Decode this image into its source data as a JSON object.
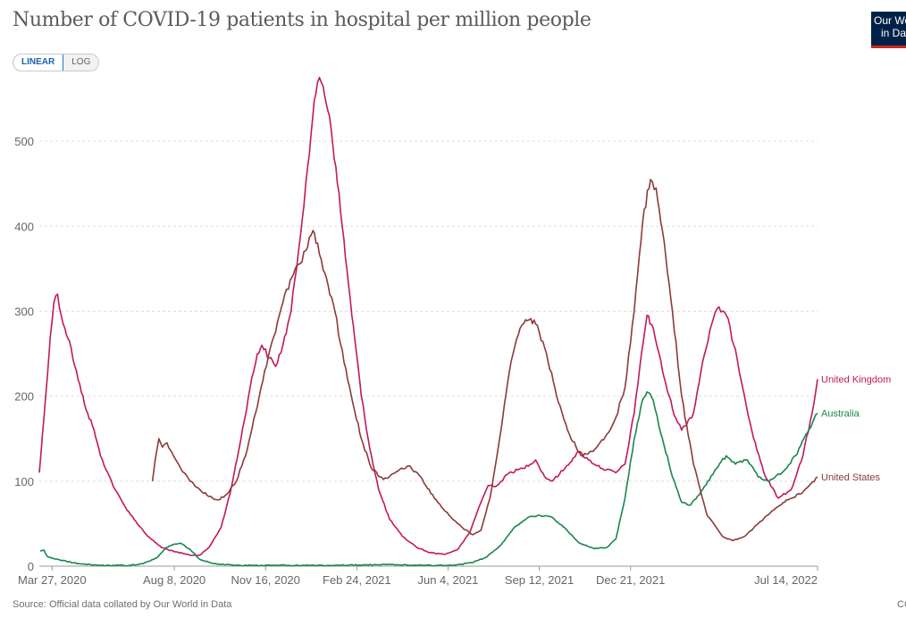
{
  "title": "Number of COVID-19 patients in hospital per million people",
  "scale_toggle": {
    "linear_label": "LINEAR",
    "log_label": "LOG",
    "active": "LINEAR"
  },
  "logo": {
    "line1": "Our World",
    "line2": "in Data",
    "bg_color": "#002147",
    "accent_color": "#ce261e"
  },
  "source": "Source: Official data collated by Our World in Data",
  "license_fragment": "CC",
  "chart_data": {
    "type": "line",
    "title": "Number of COVID-19 patients in hospital per million people",
    "xlabel": "",
    "ylabel": "",
    "x_range": [
      "2020-03-13",
      "2022-07-14"
    ],
    "ylim": [
      0,
      580
    ],
    "y_ticks": [
      0,
      100,
      200,
      300,
      400,
      500
    ],
    "x_ticks": [
      "Mar 27, 2020",
      "Aug 8, 2020",
      "Nov 16, 2020",
      "Feb 24, 2021",
      "Jun 4, 2021",
      "Sep 12, 2021",
      "Dec 21, 2021",
      "Jul 14, 2022"
    ],
    "x_tick_dates": [
      "2020-03-27",
      "2020-08-08",
      "2020-11-16",
      "2021-02-24",
      "2021-06-04",
      "2021-09-12",
      "2021-12-21",
      "2022-07-14"
    ],
    "grid": true,
    "legend": "inline labels at line ends",
    "series": [
      {
        "name": "United Kingdom",
        "color": "#c2185b",
        "points": [
          [
            "2020-03-13",
            110
          ],
          [
            "2020-03-20",
            200
          ],
          [
            "2020-03-25",
            270
          ],
          [
            "2020-03-29",
            310
          ],
          [
            "2020-04-02",
            320
          ],
          [
            "2020-04-06",
            295
          ],
          [
            "2020-04-10",
            280
          ],
          [
            "2020-04-15",
            265
          ],
          [
            "2020-04-21",
            235
          ],
          [
            "2020-04-28",
            205
          ],
          [
            "2020-05-05",
            180
          ],
          [
            "2020-05-12",
            160
          ],
          [
            "2020-05-19",
            130
          ],
          [
            "2020-05-27",
            110
          ],
          [
            "2020-06-04",
            90
          ],
          [
            "2020-06-15",
            70
          ],
          [
            "2020-06-25",
            55
          ],
          [
            "2020-07-10",
            35
          ],
          [
            "2020-07-25",
            22
          ],
          [
            "2020-08-08",
            17
          ],
          [
            "2020-08-25",
            13
          ],
          [
            "2020-09-05",
            13
          ],
          [
            "2020-09-15",
            22
          ],
          [
            "2020-09-28",
            45
          ],
          [
            "2020-10-08",
            85
          ],
          [
            "2020-10-20",
            150
          ],
          [
            "2020-10-30",
            210
          ],
          [
            "2020-11-07",
            250
          ],
          [
            "2020-11-12",
            260
          ],
          [
            "2020-11-20",
            245
          ],
          [
            "2020-11-27",
            235
          ],
          [
            "2020-12-05",
            260
          ],
          [
            "2020-12-14",
            300
          ],
          [
            "2020-12-22",
            370
          ],
          [
            "2020-12-30",
            450
          ],
          [
            "2021-01-05",
            510
          ],
          [
            "2021-01-10",
            555
          ],
          [
            "2021-01-14",
            575
          ],
          [
            "2021-01-18",
            565
          ],
          [
            "2021-01-25",
            530
          ],
          [
            "2021-02-01",
            470
          ],
          [
            "2021-02-08",
            400
          ],
          [
            "2021-02-15",
            330
          ],
          [
            "2021-02-22",
            265
          ],
          [
            "2021-03-01",
            200
          ],
          [
            "2021-03-10",
            140
          ],
          [
            "2021-03-20",
            90
          ],
          [
            "2021-04-01",
            55
          ],
          [
            "2021-04-15",
            35
          ],
          [
            "2021-05-01",
            22
          ],
          [
            "2021-05-15",
            16
          ],
          [
            "2021-06-01",
            14
          ],
          [
            "2021-06-15",
            20
          ],
          [
            "2021-06-28",
            40
          ],
          [
            "2021-07-08",
            70
          ],
          [
            "2021-07-18",
            95
          ],
          [
            "2021-07-28",
            95
          ],
          [
            "2021-08-10",
            110
          ],
          [
            "2021-08-25",
            115
          ],
          [
            "2021-09-08",
            125
          ],
          [
            "2021-09-18",
            105
          ],
          [
            "2021-09-26",
            100
          ],
          [
            "2021-10-10",
            115
          ],
          [
            "2021-10-25",
            135
          ],
          [
            "2021-11-05",
            125
          ],
          [
            "2021-11-20",
            115
          ],
          [
            "2021-12-05",
            110
          ],
          [
            "2021-12-15",
            120
          ],
          [
            "2021-12-25",
            180
          ],
          [
            "2022-01-02",
            250
          ],
          [
            "2022-01-08",
            295
          ],
          [
            "2022-01-15",
            280
          ],
          [
            "2022-01-25",
            230
          ],
          [
            "2022-02-05",
            185
          ],
          [
            "2022-02-15",
            160
          ],
          [
            "2022-02-28",
            180
          ],
          [
            "2022-03-10",
            240
          ],
          [
            "2022-03-20",
            285
          ],
          [
            "2022-03-28",
            305
          ],
          [
            "2022-04-05",
            295
          ],
          [
            "2022-04-15",
            255
          ],
          [
            "2022-04-25",
            200
          ],
          [
            "2022-05-05",
            150
          ],
          [
            "2022-05-18",
            105
          ],
          [
            "2022-06-01",
            80
          ],
          [
            "2022-06-15",
            90
          ],
          [
            "2022-06-28",
            130
          ],
          [
            "2022-07-08",
            180
          ],
          [
            "2022-07-14",
            220
          ]
        ]
      },
      {
        "name": "Australia",
        "color": "#18864b",
        "points": [
          [
            "2020-03-14",
            18
          ],
          [
            "2020-03-18",
            19
          ],
          [
            "2020-03-22",
            11
          ],
          [
            "2020-04-05",
            7
          ],
          [
            "2020-04-25",
            3
          ],
          [
            "2020-05-20",
            1
          ],
          [
            "2020-06-20",
            1
          ],
          [
            "2020-07-05",
            3
          ],
          [
            "2020-07-20",
            10
          ],
          [
            "2020-07-30",
            22
          ],
          [
            "2020-08-08",
            26
          ],
          [
            "2020-08-15",
            27
          ],
          [
            "2020-08-25",
            20
          ],
          [
            "2020-09-05",
            8
          ],
          [
            "2020-09-20",
            3
          ],
          [
            "2020-10-15",
            1
          ],
          [
            "2021-02-01",
            1
          ],
          [
            "2021-04-01",
            2
          ],
          [
            "2021-05-01",
            1
          ],
          [
            "2021-06-10",
            1
          ],
          [
            "2021-06-30",
            4
          ],
          [
            "2021-07-15",
            10
          ],
          [
            "2021-08-01",
            25
          ],
          [
            "2021-08-15",
            45
          ],
          [
            "2021-08-30",
            57
          ],
          [
            "2021-09-12",
            60
          ],
          [
            "2021-09-25",
            58
          ],
          [
            "2021-10-10",
            45
          ],
          [
            "2021-10-25",
            28
          ],
          [
            "2021-11-10",
            21
          ],
          [
            "2021-11-25",
            22
          ],
          [
            "2021-12-05",
            32
          ],
          [
            "2021-12-15",
            80
          ],
          [
            "2021-12-25",
            150
          ],
          [
            "2022-01-03",
            195
          ],
          [
            "2022-01-08",
            205
          ],
          [
            "2022-01-15",
            195
          ],
          [
            "2022-01-25",
            150
          ],
          [
            "2022-02-05",
            105
          ],
          [
            "2022-02-15",
            75
          ],
          [
            "2022-02-25",
            72
          ],
          [
            "2022-03-10",
            90
          ],
          [
            "2022-03-25",
            115
          ],
          [
            "2022-04-05",
            130
          ],
          [
            "2022-04-15",
            120
          ],
          [
            "2022-04-28",
            125
          ],
          [
            "2022-05-10",
            105
          ],
          [
            "2022-05-22",
            100
          ],
          [
            "2022-06-05",
            110
          ],
          [
            "2022-06-20",
            130
          ],
          [
            "2022-07-01",
            155
          ],
          [
            "2022-07-14",
            180
          ]
        ]
      },
      {
        "name": "United States",
        "color": "#8b3a3a",
        "points": [
          [
            "2020-07-15",
            100
          ],
          [
            "2020-07-18",
            125
          ],
          [
            "2020-07-22",
            150
          ],
          [
            "2020-07-26",
            140
          ],
          [
            "2020-07-31",
            145
          ],
          [
            "2020-08-07",
            130
          ],
          [
            "2020-08-15",
            115
          ],
          [
            "2020-08-25",
            100
          ],
          [
            "2020-09-05",
            90
          ],
          [
            "2020-09-15",
            82
          ],
          [
            "2020-09-25",
            78
          ],
          [
            "2020-10-05",
            85
          ],
          [
            "2020-10-15",
            100
          ],
          [
            "2020-10-25",
            130
          ],
          [
            "2020-11-05",
            180
          ],
          [
            "2020-11-15",
            230
          ],
          [
            "2020-11-25",
            270
          ],
          [
            "2020-12-05",
            310
          ],
          [
            "2020-12-15",
            340
          ],
          [
            "2020-12-22",
            355
          ],
          [
            "2021-01-01",
            375
          ],
          [
            "2021-01-07",
            395
          ],
          [
            "2021-01-12",
            380
          ],
          [
            "2021-01-20",
            345
          ],
          [
            "2021-01-31",
            300
          ],
          [
            "2021-02-10",
            240
          ],
          [
            "2021-02-20",
            190
          ],
          [
            "2021-03-01",
            150
          ],
          [
            "2021-03-12",
            115
          ],
          [
            "2021-03-25",
            102
          ],
          [
            "2021-04-10",
            112
          ],
          [
            "2021-04-22",
            118
          ],
          [
            "2021-05-05",
            105
          ],
          [
            "2021-05-20",
            80
          ],
          [
            "2021-06-05",
            60
          ],
          [
            "2021-06-20",
            45
          ],
          [
            "2021-07-01",
            37
          ],
          [
            "2021-07-10",
            42
          ],
          [
            "2021-07-20",
            80
          ],
          [
            "2021-08-01",
            160
          ],
          [
            "2021-08-12",
            240
          ],
          [
            "2021-08-22",
            280
          ],
          [
            "2021-09-01",
            290
          ],
          [
            "2021-09-08",
            285
          ],
          [
            "2021-09-20",
            250
          ],
          [
            "2021-10-01",
            200
          ],
          [
            "2021-10-15",
            155
          ],
          [
            "2021-10-28",
            130
          ],
          [
            "2021-11-10",
            135
          ],
          [
            "2021-11-25",
            155
          ],
          [
            "2021-12-05",
            175
          ],
          [
            "2021-12-15",
            210
          ],
          [
            "2021-12-25",
            300
          ],
          [
            "2022-01-05",
            420
          ],
          [
            "2022-01-12",
            455
          ],
          [
            "2022-01-18",
            445
          ],
          [
            "2022-01-25",
            395
          ],
          [
            "2022-02-05",
            300
          ],
          [
            "2022-02-15",
            200
          ],
          [
            "2022-02-28",
            120
          ],
          [
            "2022-03-15",
            60
          ],
          [
            "2022-04-01",
            35
          ],
          [
            "2022-04-12",
            30
          ],
          [
            "2022-04-25",
            35
          ],
          [
            "2022-05-10",
            50
          ],
          [
            "2022-05-25",
            65
          ],
          [
            "2022-06-10",
            78
          ],
          [
            "2022-06-25",
            85
          ],
          [
            "2022-07-05",
            95
          ],
          [
            "2022-07-14",
            105
          ]
        ]
      }
    ]
  }
}
